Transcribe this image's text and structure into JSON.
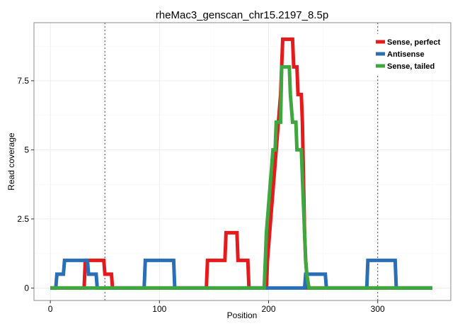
{
  "chart_data": {
    "type": "line",
    "title": "rheMac3_genscan_chr15.2197_8.5p",
    "xlabel": "Position",
    "ylabel": "Read coverage",
    "xlim": [
      -15,
      367
    ],
    "ylim": [
      -0.45,
      9.6
    ],
    "x_ticks": [
      0,
      100,
      200,
      300
    ],
    "x_tick_labels": [
      "0",
      "100",
      "200",
      "300"
    ],
    "y_ticks": [
      0,
      2.5,
      5,
      7.5
    ],
    "y_tick_labels": [
      "0",
      "2.5",
      "5",
      "7.5"
    ],
    "vlines": [
      50,
      300
    ],
    "grid": true,
    "legend_position": "top-right",
    "series": [
      {
        "name": "Sense, perfect",
        "color": "#e41a1c",
        "points": [
          [
            0,
            0
          ],
          [
            31,
            0
          ],
          [
            32,
            1
          ],
          [
            49,
            1
          ],
          [
            50,
            0.5
          ],
          [
            56,
            0.5
          ],
          [
            57,
            0
          ],
          [
            143,
            0
          ],
          [
            144,
            1
          ],
          [
            160,
            1
          ],
          [
            161,
            2
          ],
          [
            171,
            2
          ],
          [
            172,
            1
          ],
          [
            181,
            1
          ],
          [
            182,
            0
          ],
          [
            198,
            0
          ],
          [
            199,
            1
          ],
          [
            201,
            2
          ],
          [
            203,
            3
          ],
          [
            205,
            4
          ],
          [
            207,
            5
          ],
          [
            209,
            6
          ],
          [
            211,
            7
          ],
          [
            212,
            8
          ],
          [
            213,
            9
          ],
          [
            222,
            9
          ],
          [
            223,
            8
          ],
          [
            226,
            8
          ],
          [
            227,
            7
          ],
          [
            230,
            7
          ],
          [
            231,
            6
          ],
          [
            232,
            4
          ],
          [
            233,
            2
          ],
          [
            234,
            1
          ],
          [
            235,
            0.5
          ],
          [
            236,
            0
          ],
          [
            350,
            0
          ]
        ]
      },
      {
        "name": "Antisense",
        "color": "#2a6fb6",
        "points": [
          [
            0,
            0
          ],
          [
            5,
            0
          ],
          [
            6,
            0.5
          ],
          [
            12,
            0.5
          ],
          [
            13,
            1
          ],
          [
            34,
            1
          ],
          [
            35,
            0.5
          ],
          [
            42,
            0.5
          ],
          [
            43,
            0
          ],
          [
            86,
            0
          ],
          [
            87,
            1
          ],
          [
            113,
            1
          ],
          [
            114,
            0
          ],
          [
            233,
            0
          ],
          [
            234,
            0.5
          ],
          [
            252,
            0.5
          ],
          [
            253,
            0
          ],
          [
            290,
            0
          ],
          [
            291,
            1
          ],
          [
            316,
            1
          ],
          [
            317,
            0
          ],
          [
            350,
            0
          ]
        ]
      },
      {
        "name": "Sense, tailed",
        "color": "#3fa73f",
        "points": [
          [
            0,
            0
          ],
          [
            196,
            0
          ],
          [
            197,
            1
          ],
          [
            198,
            2
          ],
          [
            200,
            3
          ],
          [
            202,
            4
          ],
          [
            204,
            5
          ],
          [
            206,
            5
          ],
          [
            207,
            6
          ],
          [
            211,
            6
          ],
          [
            212,
            8
          ],
          [
            219,
            8
          ],
          [
            220,
            7
          ],
          [
            222,
            6
          ],
          [
            225,
            6
          ],
          [
            226,
            5
          ],
          [
            230,
            5
          ],
          [
            231,
            4
          ],
          [
            232,
            3
          ],
          [
            233,
            2
          ],
          [
            234,
            1
          ],
          [
            235,
            0.5
          ],
          [
            237,
            0
          ],
          [
            350,
            0
          ]
        ]
      }
    ]
  }
}
